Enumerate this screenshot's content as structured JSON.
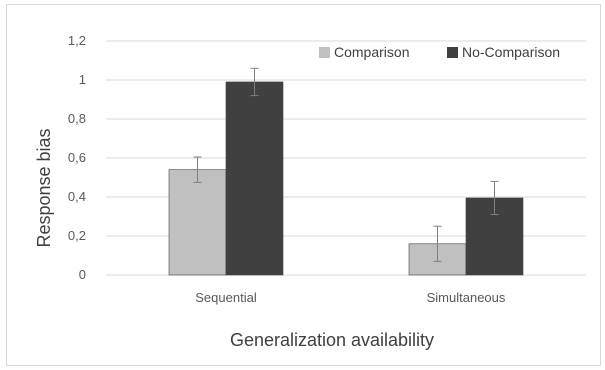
{
  "chart_data": {
    "type": "bar",
    "title": "",
    "xlabel": "Generalization availability",
    "ylabel": "Response bias",
    "categories": [
      "Sequential",
      "Simultaneous"
    ],
    "ylim": [
      0,
      1.2
    ],
    "yticks": [
      "0",
      "0,2",
      "0,4",
      "0,6",
      "0,8",
      "1",
      "1,2"
    ],
    "ytick_values": [
      0,
      0.2,
      0.4,
      0.6,
      0.8,
      1.0,
      1.2
    ],
    "grid": true,
    "legend_position": "top-right",
    "series": [
      {
        "name": "Comparison",
        "color": "#c0c0c0",
        "values": [
          0.54,
          0.16
        ],
        "error": [
          0.065,
          0.09
        ]
      },
      {
        "name": "No-Comparison",
        "color": "#404040",
        "values": [
          0.99,
          0.395
        ],
        "error": [
          0.07,
          0.085
        ]
      }
    ]
  }
}
